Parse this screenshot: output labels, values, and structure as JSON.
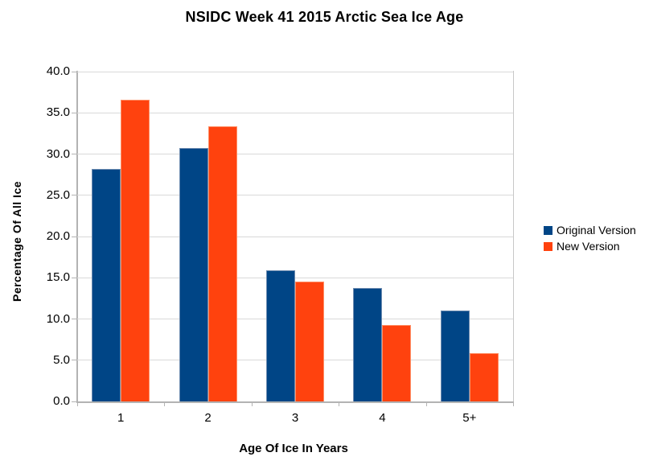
{
  "chart_data": {
    "type": "bar",
    "title": "NSIDC Week 41 2015 Arctic Sea Ice Age",
    "xlabel": "Age Of Ice In Years",
    "ylabel": "Percentage Of All Ice",
    "categories": [
      "1",
      "2",
      "3",
      "4",
      "5+"
    ],
    "series": [
      {
        "name": "Original Version",
        "color": "#004586",
        "edge_color": "#6e8cb0",
        "values": [
          28.2,
          30.7,
          15.9,
          13.8,
          11.0
        ]
      },
      {
        "name": "New Version",
        "color": "#FF420E",
        "edge_color": "#ff8f66",
        "values": [
          36.6,
          33.4,
          14.5,
          9.3,
          5.9
        ]
      }
    ],
    "ylim": [
      0,
      40
    ],
    "y_tick_step": 5,
    "y_tick_labels": [
      "0.0",
      "5.0",
      "10.0",
      "15.0",
      "20.0",
      "25.0",
      "30.0",
      "35.0",
      "40.0"
    ],
    "grid": "horizontal",
    "legend_position": "right",
    "colors": {
      "background": "#ffffff",
      "gridline": "#d9d9d9",
      "axis": "#b3b3b3",
      "text": "#000000"
    }
  }
}
